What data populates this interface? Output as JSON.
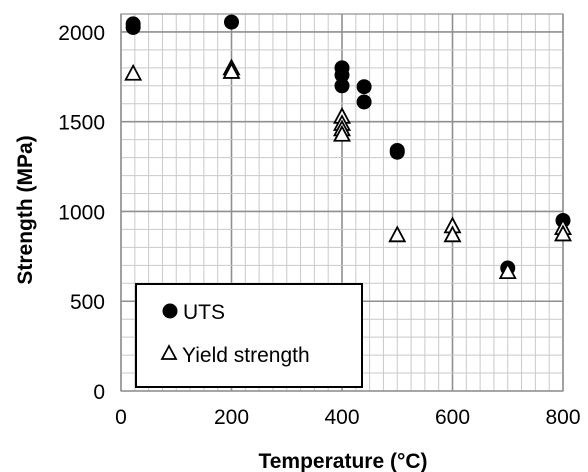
{
  "chart_data": {
    "type": "scatter",
    "xlabel": "Temperature (°C)",
    "ylabel": "Strength (MPa)",
    "xlim": [
      0,
      800
    ],
    "ylim": [
      0,
      2100
    ],
    "x_ticks": [
      "0",
      "200",
      "400",
      "600",
      "800"
    ],
    "y_ticks": [
      "0",
      "500",
      "1000",
      "1500",
      "2000"
    ],
    "grid": true,
    "legend_position": "bottom-left",
    "series": [
      {
        "name": "UTS",
        "marker": "filled-circle",
        "color": "#000000",
        "points": [
          [
            22,
            2045
          ],
          [
            22,
            2025
          ],
          [
            200,
            2055
          ],
          [
            400,
            1800
          ],
          [
            400,
            1760
          ],
          [
            400,
            1700
          ],
          [
            440,
            1695
          ],
          [
            440,
            1610
          ],
          [
            500,
            1340
          ],
          [
            500,
            1330
          ],
          [
            700,
            685
          ],
          [
            800,
            950
          ]
        ]
      },
      {
        "name": "Yield strength",
        "marker": "open-triangle",
        "color": "#000000",
        "points": [
          [
            22,
            1770
          ],
          [
            200,
            1800
          ],
          [
            200,
            1780
          ],
          [
            400,
            1530
          ],
          [
            400,
            1490
          ],
          [
            400,
            1460
          ],
          [
            400,
            1430
          ],
          [
            500,
            870
          ],
          [
            600,
            920
          ],
          [
            600,
            870
          ],
          [
            700,
            665
          ],
          [
            800,
            910
          ],
          [
            800,
            875
          ]
        ]
      }
    ]
  }
}
